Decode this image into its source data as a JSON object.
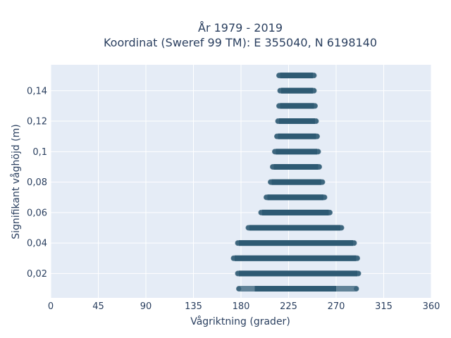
{
  "chart_data": {
    "type": "scatter",
    "title_line1": "År 1979 - 2019",
    "title_line2": "Koordinat (Sweref 99 TM): E 355040, N 6198140",
    "xlabel": "Vågriktning (grader)",
    "ylabel": "Signifikant våghöjd (m)",
    "xlim": [
      0,
      360
    ],
    "ylim": [
      0.004,
      0.157
    ],
    "grid": true,
    "x_ticks": [
      0,
      45,
      90,
      135,
      180,
      225,
      270,
      315,
      360
    ],
    "x_tick_labels": [
      "0",
      "45",
      "90",
      "135",
      "180",
      "225",
      "270",
      "315",
      "360"
    ],
    "y_ticks": [
      0.02,
      0.04,
      0.06,
      0.08,
      0.1,
      0.12,
      0.14
    ],
    "y_tick_labels": [
      "0,02",
      "0,04",
      "0,06",
      "0,08",
      "0,1",
      "0,12",
      "0,14"
    ],
    "marker_color": "#2e5a73",
    "background_color": "#e5ecf6",
    "series": [
      {
        "bands": [
          {
            "y": 0.01,
            "x_min": 178,
            "x_max": 289,
            "dense_min": 193,
            "dense_max": 270
          },
          {
            "y": 0.02,
            "x_min": 177,
            "x_max": 291
          },
          {
            "y": 0.03,
            "x_min": 173,
            "x_max": 290
          },
          {
            "y": 0.04,
            "x_min": 177,
            "x_max": 287
          },
          {
            "y": 0.05,
            "x_min": 187,
            "x_max": 275
          },
          {
            "y": 0.06,
            "x_min": 199,
            "x_max": 264
          },
          {
            "y": 0.07,
            "x_min": 204,
            "x_max": 259
          },
          {
            "y": 0.08,
            "x_min": 208,
            "x_max": 257
          },
          {
            "y": 0.09,
            "x_min": 210,
            "x_max": 254
          },
          {
            "y": 0.1,
            "x_min": 212,
            "x_max": 253
          },
          {
            "y": 0.11,
            "x_min": 214,
            "x_max": 252
          },
          {
            "y": 0.12,
            "x_min": 215,
            "x_max": 251
          },
          {
            "y": 0.13,
            "x_min": 216,
            "x_max": 250
          },
          {
            "y": 0.14,
            "x_min": 217,
            "x_max": 249
          },
          {
            "y": 0.15,
            "x_min": 216,
            "x_max": 249
          }
        ]
      }
    ]
  }
}
